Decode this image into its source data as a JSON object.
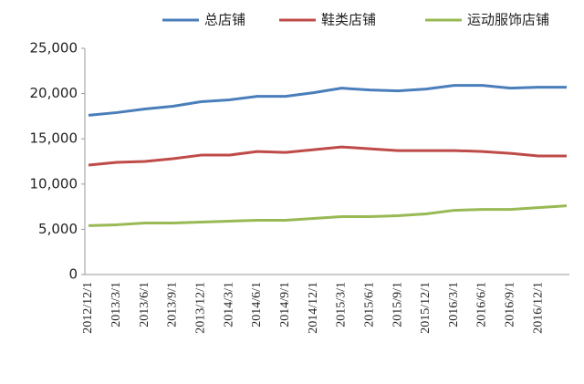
{
  "chart_data": {
    "type": "line",
    "categories": [
      "2012/12/1",
      "2013/3/1",
      "2013/6/1",
      "2013/9/1",
      "2013/12/1",
      "2014/3/1",
      "2014/6/1",
      "2014/9/1",
      "2014/12/1",
      "2015/3/1",
      "2015/6/1",
      "2015/9/1",
      "2015/12/1",
      "2016/3/1",
      "2016/6/1",
      "2016/9/1",
      "2016/12/1",
      null
    ],
    "series": [
      {
        "name": "总店铺",
        "color": "#4a7ebb",
        "values": [
          17600,
          17900,
          18300,
          18600,
          19100,
          19300,
          19700,
          19700,
          20100,
          20600,
          20400,
          20300,
          20500,
          20900,
          20900,
          20600,
          20700,
          20700
        ]
      },
      {
        "name": "鞋类店铺",
        "color": "#be4b48",
        "values": [
          12100,
          12400,
          12500,
          12800,
          13200,
          13200,
          13600,
          13500,
          13800,
          14100,
          13900,
          13700,
          13700,
          13700,
          13600,
          13400,
          13100,
          13100
        ]
      },
      {
        "name": "运动服饰店铺",
        "color": "#98b954",
        "values": [
          5400,
          5500,
          5700,
          5700,
          5800,
          5900,
          6000,
          6000,
          6200,
          6400,
          6400,
          6500,
          6700,
          7100,
          7200,
          7200,
          7400,
          7600
        ]
      }
    ],
    "ylim": [
      0,
      25000
    ],
    "yticks": [
      0,
      {
        "value": 5000,
        "label": "5,000"
      },
      {
        "value": 10000,
        "label": "10,000"
      },
      {
        "value": 15000,
        "label": "15,000"
      },
      {
        "value": 20000,
        "label": "20,000"
      },
      {
        "value": 25000,
        "label": "25,000"
      }
    ],
    "grid": false,
    "legend": "top"
  }
}
